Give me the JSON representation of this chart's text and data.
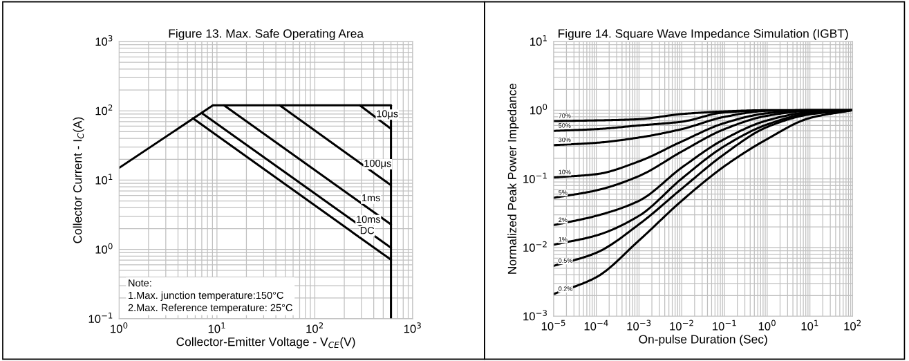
{
  "chart_data": [
    {
      "type": "line",
      "title": "Figure 13. Max. Safe Operating Area",
      "xlabel": "Collector-Emitter Voltage - V$_{CE}$(V)",
      "ylabel": "Collector Current - I$_{C}$(A)",
      "log": "xy",
      "grid": true,
      "legend": false,
      "xlim": [
        1,
        1000
      ],
      "ylim": [
        0.1,
        1000
      ],
      "xticks": [
        {
          "value": 1,
          "label": "10$^{0}$"
        },
        {
          "value": 10,
          "label": "10$^{1}$"
        },
        {
          "value": 100,
          "label": "10$^{2}$"
        },
        {
          "value": 1000,
          "label": "10$^{3}$"
        }
      ],
      "yticks": [
        {
          "value": 0.1,
          "label": "10$^{−1}$"
        },
        {
          "value": 1,
          "label": "10$^{0}$"
        },
        {
          "value": 10,
          "label": "10$^{1}$"
        },
        {
          "value": 100,
          "label": "10$^{2}$"
        },
        {
          "value": 1000,
          "label": "10$^{3}$"
        }
      ],
      "series": [
        {
          "color": "#000000",
          "x": [
            1,
            9.1
          ],
          "values": [
            15,
            120
          ]
        },
        {
          "color": "#000000",
          "x": [
            9.1,
            600
          ],
          "values": [
            120,
            120
          ]
        },
        {
          "color": "#000000",
          "x": [
            600,
            600
          ],
          "values": [
            120,
            0.1
          ]
        },
        {
          "name": "10μs",
          "color": "#000000",
          "x": [
            288,
            600
          ],
          "values": [
            120,
            55
          ]
        },
        {
          "name": "100μs",
          "color": "#000000",
          "x": [
            43.8,
            600
          ],
          "values": [
            120,
            8.45
          ]
        },
        {
          "name": "1ms",
          "color": "#000000",
          "x": [
            11.8,
            600
          ],
          "values": [
            120,
            2.3
          ]
        },
        {
          "name": "10ms",
          "color": "#000000",
          "x": [
            7.0,
            600
          ],
          "values": [
            93,
            1.06
          ]
        },
        {
          "name": "DC",
          "color": "#000000",
          "x": [
            5.67,
            600
          ],
          "values": [
            78,
            0.71
          ]
        }
      ],
      "annotations": [
        "Note:\n1.Max. junction temperature:150°C\n2.Max. Reference temperature: 25°C"
      ]
    },
    {
      "type": "line",
      "title": "Figure 14. Square Wave Impedance Simulation (IGBT)",
      "xlabel": "On-pulse Duration (Sec)",
      "ylabel": "Normalized Peak Power Impedance",
      "log": "xy",
      "grid": true,
      "legend": false,
      "xlim": [
        1e-05,
        100
      ],
      "ylim": [
        0.001,
        10
      ],
      "xticks": [
        {
          "value": 1e-05,
          "label": "10$^{−5}$"
        },
        {
          "value": 0.0001,
          "label": "10$^{−4}$"
        },
        {
          "value": 0.001,
          "label": "10$^{−3}$"
        },
        {
          "value": 0.01,
          "label": "10$^{−2}$"
        },
        {
          "value": 0.1,
          "label": "10$^{−1}$"
        },
        {
          "value": 1,
          "label": "10$^{0}$"
        },
        {
          "value": 10,
          "label": "10$^{1}$"
        },
        {
          "value": 100,
          "label": "10$^{2}$"
        }
      ],
      "yticks": [
        {
          "value": 0.001,
          "label": "10$^{−3}$"
        },
        {
          "value": 0.01,
          "label": "10$^{−2}$"
        },
        {
          "value": 0.1,
          "label": "10$^{−1}$"
        },
        {
          "value": 1,
          "label": "10$^{0}$"
        },
        {
          "value": 10,
          "label": "10$^{1}$"
        }
      ],
      "x": [
        1e-05,
        0.0001,
        0.001,
        0.01,
        0.1,
        1,
        10,
        100
      ],
      "series": [
        {
          "name": "70%",
          "color": "#000000",
          "values": [
            0.695,
            0.71,
            0.74,
            0.88,
            0.96,
            1.0,
            1.0,
            1.0
          ]
        },
        {
          "name": "50%",
          "color": "#000000",
          "values": [
            0.5,
            0.53,
            0.6,
            0.68,
            0.93,
            0.99,
            1.0,
            1.0
          ]
        },
        {
          "name": "30%",
          "color": "#000000",
          "values": [
            0.31,
            0.335,
            0.4,
            0.53,
            0.8,
            0.98,
            1.0,
            1.0
          ]
        },
        {
          "name": "10%",
          "color": "#000000",
          "values": [
            0.105,
            0.117,
            0.18,
            0.35,
            0.65,
            0.905,
            1.0,
            1.0
          ]
        },
        {
          "name": "5%",
          "color": "#000000",
          "values": [
            0.053,
            0.068,
            0.11,
            0.25,
            0.53,
            0.83,
            0.98,
            1.0
          ]
        },
        {
          "name": "2%",
          "color": "#000000",
          "values": [
            0.0212,
            0.029,
            0.048,
            0.146,
            0.38,
            0.71,
            0.94,
            1.0
          ]
        },
        {
          "name": "1%",
          "color": "#000000",
          "values": [
            0.011,
            0.015,
            0.029,
            0.101,
            0.3,
            0.62,
            0.905,
            1.0
          ]
        },
        {
          "name": "0.5%",
          "color": "#000000",
          "values": [
            0.0054,
            0.0084,
            0.0218,
            0.072,
            0.23,
            0.57,
            0.87,
            1.0
          ]
        },
        {
          "name": "0.2%",
          "color": "#000000",
          "values": [
            0.0021,
            0.0037,
            0.0127,
            0.048,
            0.153,
            0.38,
            0.77,
            1.0
          ]
        }
      ]
    }
  ]
}
